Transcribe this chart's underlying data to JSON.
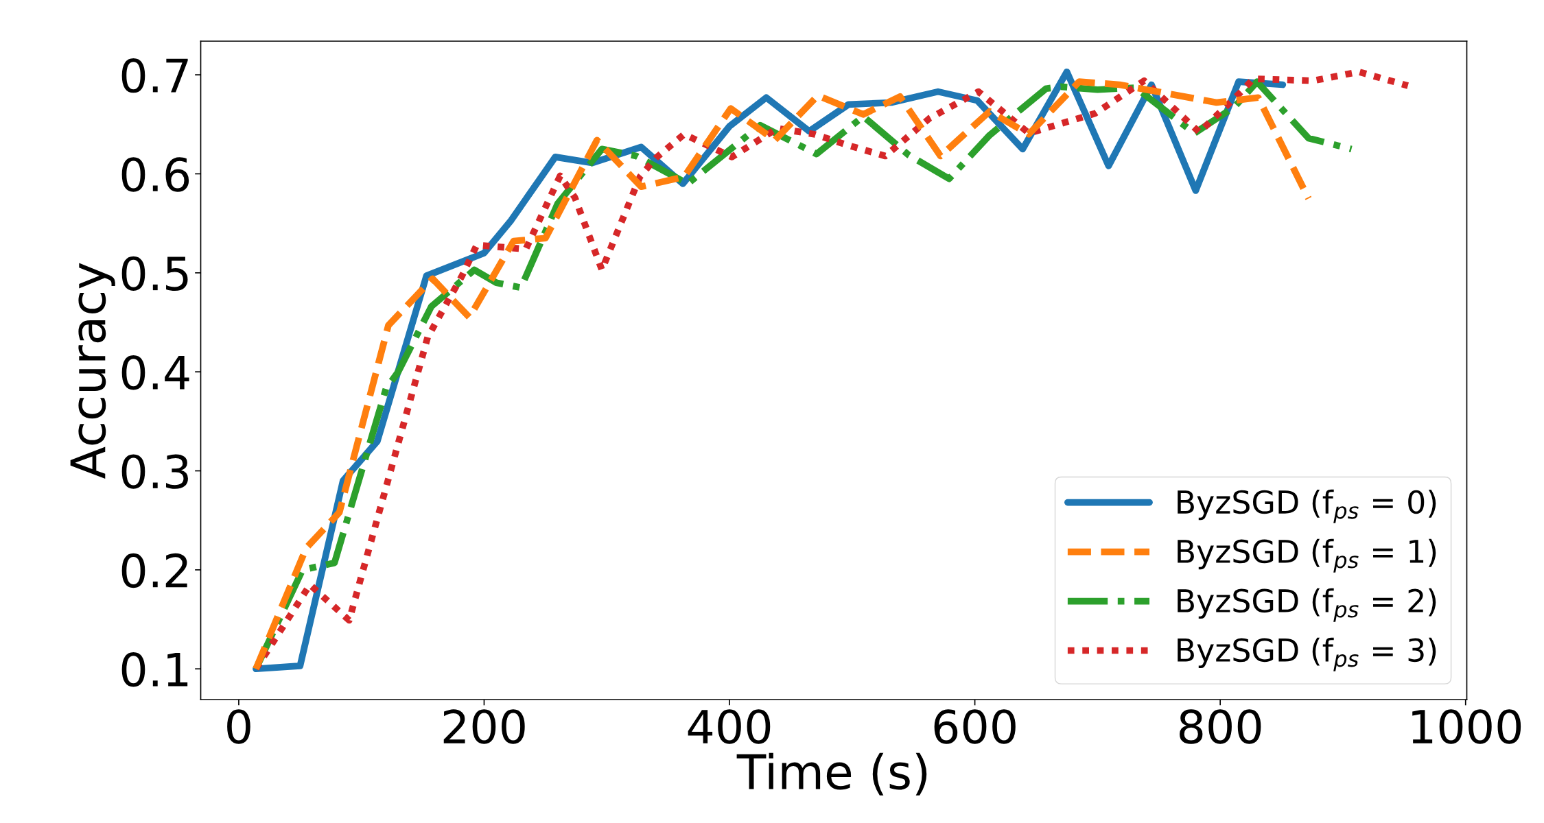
{
  "chart_data": {
    "type": "line",
    "xlabel": "Time (s)",
    "ylabel": "Accuracy",
    "xlim": [
      -31,
      1001
    ],
    "xticks": [
      0,
      200,
      400,
      600,
      800,
      1000
    ],
    "ylim": [
      0.069,
      0.734
    ],
    "yticks": [
      0.1,
      0.2,
      0.3,
      0.4,
      0.5,
      0.6,
      0.7
    ],
    "grid": false,
    "legend": "bottom right",
    "marker": "none",
    "series": [
      {
        "name": "ByzSGD (f$_{ps}$ = 0)",
        "color": "#1f77b4",
        "line_style": "solid",
        "x": [
          14,
          50,
          85,
          113,
          153,
          200,
          222,
          258,
          288,
          328,
          362,
          400,
          430,
          465,
          497,
          532,
          570,
          602,
          639,
          675,
          709,
          744,
          780,
          815,
          851
        ],
        "values": [
          0.1,
          0.103,
          0.29,
          0.33,
          0.497,
          0.52,
          0.553,
          0.617,
          0.611,
          0.627,
          0.59,
          0.648,
          0.677,
          0.643,
          0.67,
          0.672,
          0.683,
          0.674,
          0.625,
          0.703,
          0.608,
          0.69,
          0.583,
          0.693,
          0.69
        ]
      },
      {
        "name": "ByzSGD (f$_{ps}$ = 1)",
        "color": "#ff7f0e",
        "line_style": "dashed",
        "x": [
          14,
          55,
          82,
          122,
          158,
          188,
          224,
          250,
          292,
          328,
          363,
          401,
          437,
          472,
          509,
          539,
          572,
          612,
          644,
          685,
          718,
          797,
          831,
          872
        ],
        "values": [
          0.1,
          0.222,
          0.258,
          0.447,
          0.494,
          0.455,
          0.532,
          0.535,
          0.634,
          0.587,
          0.597,
          0.666,
          0.634,
          0.679,
          0.66,
          0.678,
          0.618,
          0.663,
          0.64,
          0.693,
          0.69,
          0.672,
          0.677,
          0.575
        ]
      },
      {
        "name": "ByzSGD (f$_{ps}$ = 2)",
        "color": "#2ca02c",
        "line_style": "dashdot",
        "x": [
          14,
          52,
          78,
          120,
          130,
          157,
          192,
          210,
          230,
          260,
          296,
          324,
          366,
          425,
          471,
          509,
          546,
          579,
          612,
          658,
          670,
          700,
          731,
          779,
          812,
          830,
          872,
          907
        ],
        "values": [
          0.1,
          0.2,
          0.207,
          0.383,
          0.4,
          0.466,
          0.503,
          0.49,
          0.485,
          0.57,
          0.625,
          0.618,
          0.59,
          0.649,
          0.62,
          0.658,
          0.619,
          0.595,
          0.639,
          0.686,
          0.688,
          0.685,
          0.687,
          0.641,
          0.668,
          0.693,
          0.636,
          0.625
        ]
      },
      {
        "name": "ByzSGD (f$_{ps}$ = 3)",
        "color": "#d62728",
        "line_style": "dotted",
        "x": [
          14,
          58,
          90,
          154,
          182,
          194,
          234,
          262,
          274,
          296,
          327,
          340,
          363,
          402,
          439,
          469,
          499,
          527,
          563,
          603,
          644,
          698,
          738,
          783,
          818,
          827,
          876,
          913,
          953
        ],
        "values": [
          0.1,
          0.185,
          0.149,
          0.435,
          0.497,
          0.528,
          0.524,
          0.598,
          0.576,
          0.503,
          0.597,
          0.616,
          0.64,
          0.617,
          0.646,
          0.64,
          0.628,
          0.618,
          0.656,
          0.683,
          0.641,
          0.661,
          0.694,
          0.642,
          0.684,
          0.696,
          0.694,
          0.703,
          0.689
        ]
      }
    ]
  }
}
